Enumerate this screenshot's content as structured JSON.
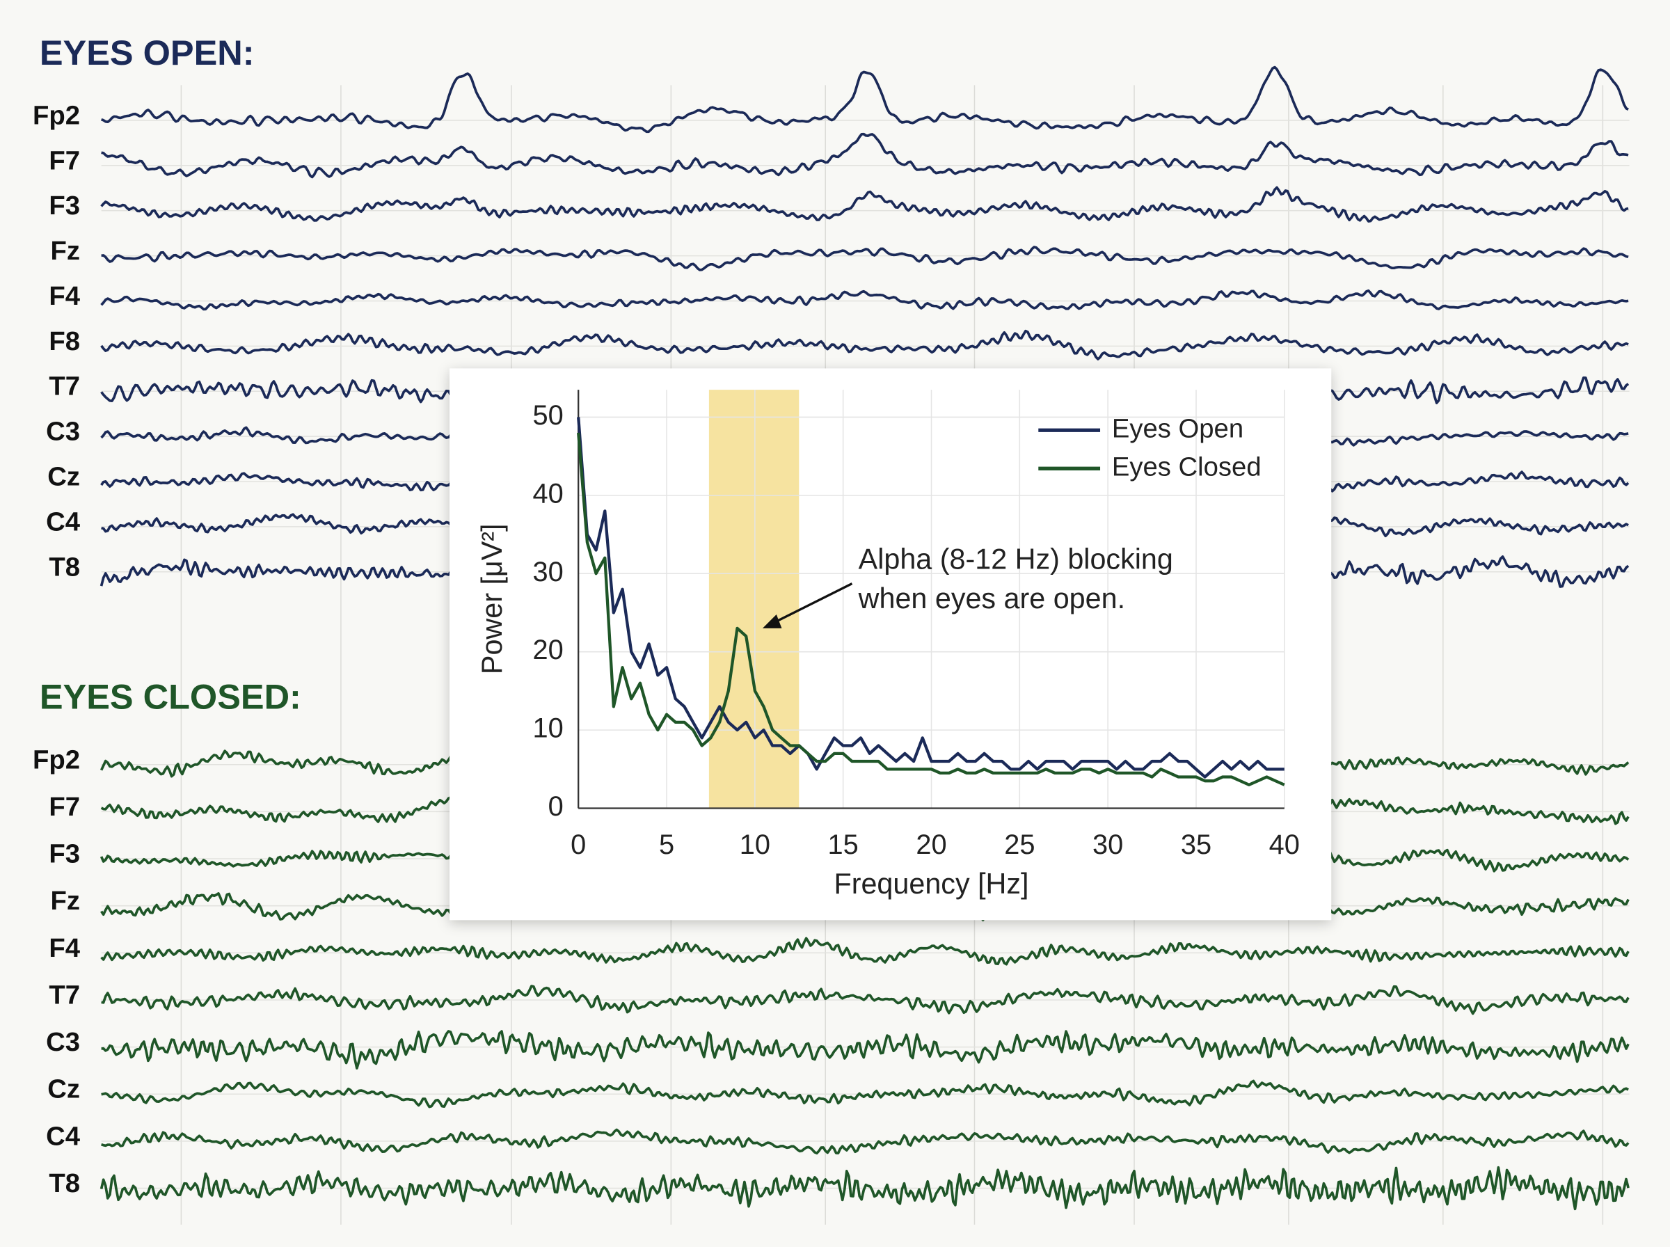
{
  "eeg": {
    "sections": [
      {
        "title": "EYES OPEN:",
        "color": "#1b2a58",
        "channels": [
          "Fp2",
          "F7",
          "F3",
          "Fz",
          "F4",
          "F8",
          "T7",
          "C3",
          "Cz",
          "C4",
          "T8"
        ]
      },
      {
        "title": "EYES CLOSED:",
        "color": "#1f5628",
        "channels": [
          "Fp2",
          "F7",
          "F3",
          "Fz",
          "F4",
          "T7",
          "C3",
          "Cz",
          "C4",
          "T8"
        ]
      }
    ]
  },
  "chart_data": {
    "type": "line",
    "x_label": "Frequency [Hz]",
    "y_label": "Power [μV²]",
    "x": [
      0,
      0.5,
      1,
      1.5,
      2,
      2.5,
      3,
      3.5,
      4,
      4.5,
      5,
      5.5,
      6,
      6.5,
      7,
      7.5,
      8,
      8.5,
      9,
      9.5,
      10,
      10.5,
      11,
      11.5,
      12,
      12.5,
      13,
      13.5,
      14,
      14.5,
      15,
      15.5,
      16,
      16.5,
      17,
      17.5,
      18,
      18.5,
      19,
      19.5,
      20,
      20.5,
      21,
      21.5,
      22,
      22.5,
      23,
      23.5,
      24,
      24.5,
      25,
      25.5,
      26,
      26.5,
      27,
      27.5,
      28,
      28.5,
      29,
      29.5,
      30,
      30.5,
      31,
      31.5,
      32,
      32.5,
      33,
      33.5,
      34,
      34.5,
      35,
      35.5,
      36,
      36.5,
      37,
      37.5,
      38,
      38.5,
      39,
      39.5,
      40
    ],
    "series": [
      {
        "name": "Eyes Open",
        "color": "#1b2a58",
        "values": [
          50,
          35,
          33,
          38,
          25,
          28,
          20,
          18,
          21,
          17,
          18,
          14,
          13,
          11,
          9,
          11,
          13,
          11,
          10,
          11,
          9,
          10,
          8,
          8,
          7,
          8,
          7,
          5,
          7,
          9,
          8,
          8,
          9,
          7,
          8,
          7,
          6,
          7,
          6,
          9,
          6,
          6,
          6,
          7,
          6,
          6,
          7,
          6,
          6,
          5,
          5,
          6,
          5,
          6,
          6,
          6,
          5,
          6,
          6,
          6,
          6,
          5,
          6,
          5,
          5,
          6,
          6,
          7,
          6,
          6,
          5,
          4,
          5,
          6,
          5,
          6,
          5,
          6,
          5,
          5,
          5
        ]
      },
      {
        "name": "Eyes Closed",
        "color": "#1f5628",
        "values": [
          48,
          34,
          30,
          32,
          13,
          18,
          14,
          16,
          12,
          10,
          12,
          11,
          11,
          10,
          8,
          9,
          11,
          15,
          23,
          22,
          15,
          13,
          10,
          9,
          8,
          8,
          7,
          6,
          6,
          7,
          7,
          6,
          6,
          6,
          6,
          5,
          5,
          5,
          5,
          5,
          5,
          4.5,
          4.5,
          5,
          4.5,
          4.5,
          5,
          4.5,
          4.5,
          4.5,
          4.5,
          4.5,
          4.5,
          5,
          4.5,
          4.5,
          4.5,
          5,
          5,
          4.5,
          5,
          4.5,
          4.5,
          4.5,
          4.5,
          4,
          5,
          4.5,
          4,
          4,
          4,
          3.5,
          3.5,
          4,
          4,
          3.5,
          3,
          3.5,
          4,
          3.5,
          3
        ]
      }
    ],
    "xlim": [
      0,
      40
    ],
    "ylim": [
      0,
      53.5
    ],
    "xticks": [
      0,
      5,
      10,
      15,
      20,
      25,
      30,
      35,
      40
    ],
    "yticks": [
      0,
      10,
      20,
      30,
      40,
      50
    ],
    "grid": true,
    "legend": "upper right",
    "highlight": {
      "xlim": [
        7.4,
        12.5
      ],
      "color": "#f6e3a0"
    },
    "annotation": [
      "Alpha (8-12 Hz) blocking",
      "when eyes are open."
    ]
  }
}
